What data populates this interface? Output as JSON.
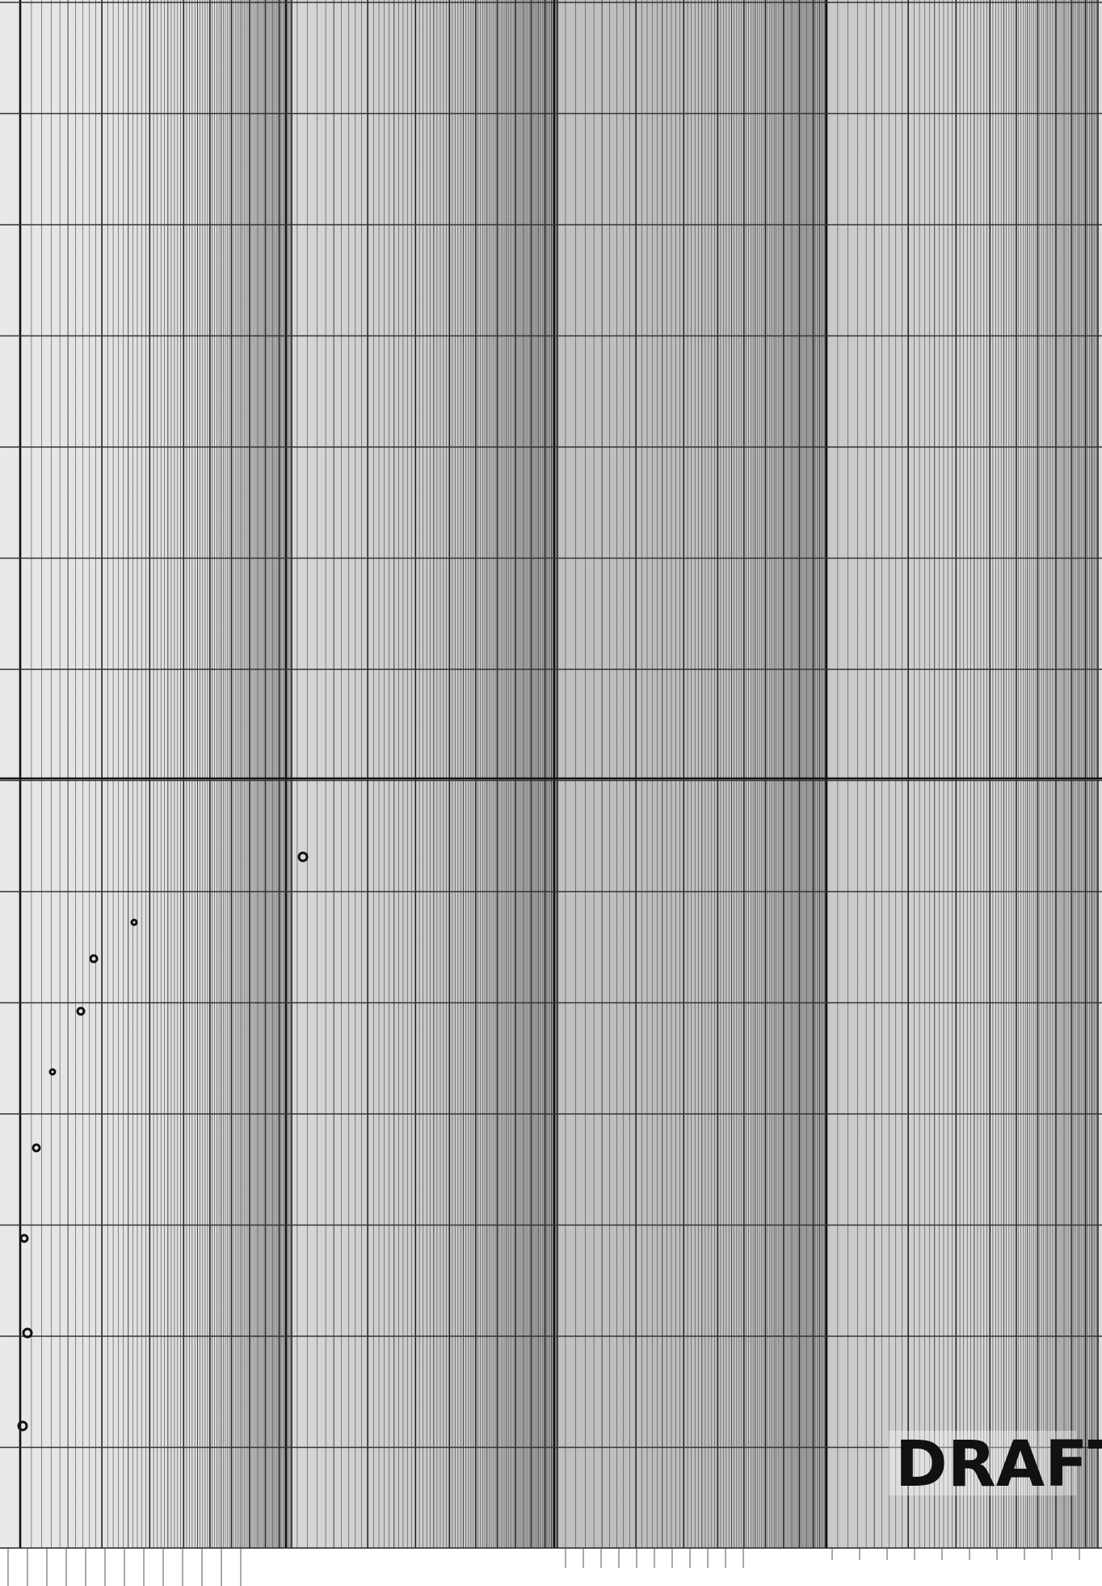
{
  "stamp": "DRAFT"
}
